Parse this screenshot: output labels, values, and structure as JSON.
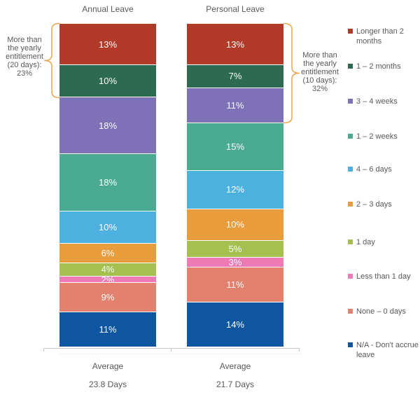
{
  "chart_data": {
    "type": "bar",
    "variant": "stacked-100-percent-columns",
    "legend_position": "right",
    "categories": [
      "Longer than 2 months",
      "1 – 2 months",
      "3 – 4 weeks",
      "1 – 2 weeks",
      "4 – 6 days",
      "2 – 3 days",
      "1 day",
      "Less than 1 day",
      "None – 0 days",
      "N/A - Don't accrue leave"
    ],
    "colors": [
      "#b13b28",
      "#2c6a52",
      "#7e71b7",
      "#4aab92",
      "#4db1e0",
      "#e99c3c",
      "#a5c04f",
      "#ee7ab5",
      "#e2816d",
      "#0e56a0"
    ],
    "columns": [
      {
        "title": "Annual Leave",
        "values": [
          13,
          10,
          18,
          18,
          10,
          6,
          4,
          2,
          9,
          11
        ],
        "value_labels": [
          "13%",
          "10%",
          "18%",
          "18%",
          "10%",
          "6%",
          "4%",
          "2%",
          "9%",
          "11%"
        ],
        "x_axis_label": "Average",
        "average": "23.8 Days",
        "annotation": {
          "side": "left",
          "lines": [
            "More than",
            "the yearly",
            "entitlement",
            "(20 days):",
            "23%"
          ],
          "text": "More than the yearly entitlement (20 days): 23%",
          "covers_top_segments": 2
        }
      },
      {
        "title": "Personal Leave",
        "values": [
          13,
          7,
          11,
          15,
          12,
          10,
          5,
          3,
          11,
          14
        ],
        "value_labels": [
          "13%",
          "7%",
          "11%",
          "15%",
          "12%",
          "10%",
          "5%",
          "3%",
          "11%",
          "14%"
        ],
        "x_axis_label": "Average",
        "average": "21.7 Days",
        "annotation": {
          "side": "right",
          "lines": [
            "More than",
            "the yearly",
            "entitlement",
            "(10 days):",
            "32%"
          ],
          "text": "More than the yearly entitlement (10 days): 32%",
          "covers_top_segments": 3
        }
      }
    ],
    "value_suffix": "%",
    "styles": {
      "label_color": "#ffffff",
      "text_color": "#595959",
      "brace_color": "#e9a54f",
      "axis_color": "#c9c9c9",
      "shadow_color": "#efefef"
    }
  }
}
